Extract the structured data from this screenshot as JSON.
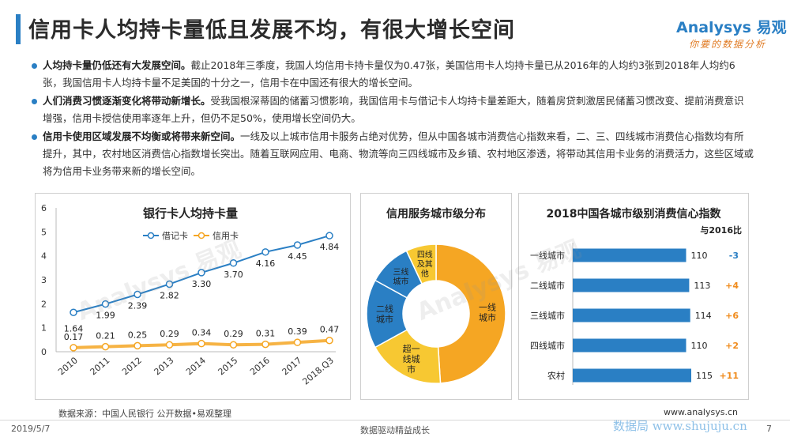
{
  "header": {
    "title": "信用卡人均持卡量低且发展不均，有很大增长空间",
    "logo_main": "Analysys 易观",
    "logo_sub": "你要的数据分析",
    "accent_color": "#2a7fc4"
  },
  "bullets": [
    {
      "bold": "人均持卡量仍低还有大发展空间。",
      "text": "截止2018年三季度，我国人均信用卡持卡量仅为0.47张，美国信用卡人均持卡量已从2016年的人均约3张到2018年人均约6张，我国信用卡人均持卡量不足美国的十分之一，信用卡在中国还有很大的增长空间。"
    },
    {
      "bold": "人们消费习惯逐渐变化将带动新增长。",
      "text": "受我国根深蒂固的储蓄习惯影响，我国信用卡与借记卡人均持卡量差距大，随着房贷刺激居民储蓄习惯改变、提前消费意识增强，信用卡授信使用率逐年上升，但仍不足50%，使用增长空间仍大。"
    },
    {
      "bold": "信用卡使用区域发展不均衡或将带来新空间。",
      "text": "一线及以上城市信用卡服务占绝对优势，但从中国各城市消费信心指数来看，二、三、四线城市消费信心指数均有所提升，其中，农村地区消费信心指数增长突出。随着互联网应用、电商、物流等向三四线城市及乡镇、农村地区渗透，将带动其信用卡业务的消费活力，这些区域或将为信用卡业务带来新的增长空间。"
    }
  ],
  "chart_data": [
    {
      "type": "line",
      "title": "银行卡人均持卡量",
      "categories": [
        "2010",
        "2011",
        "2012",
        "2013",
        "2014",
        "2015",
        "2016",
        "2017",
        "2018.Q3"
      ],
      "series": [
        {
          "name": "借记卡",
          "values": [
            1.64,
            1.99,
            2.39,
            2.82,
            3.3,
            3.7,
            4.16,
            4.45,
            4.84
          ],
          "color": "#2a7fc4"
        },
        {
          "name": "信用卡",
          "values": [
            0.17,
            0.21,
            0.25,
            0.29,
            0.34,
            0.29,
            0.31,
            0.39,
            0.47
          ],
          "color": "#f5a623"
        }
      ],
      "yticks": [
        "0",
        "1",
        "2",
        "3",
        "4",
        "5",
        "6"
      ],
      "ylim": [
        0,
        6
      ],
      "legend": "top"
    },
    {
      "type": "pie",
      "title": "信用服务城市级分布",
      "slices": [
        {
          "label": "一线城市",
          "value": 49,
          "color": "#f5a623"
        },
        {
          "label": "超一线城市",
          "value": 18,
          "color": "#f7c832"
        },
        {
          "label": "二线城市",
          "value": 16,
          "color": "#2a7fc4"
        },
        {
          "label": "三线城市",
          "value": 10,
          "color": "#2a7fc4"
        },
        {
          "label": "四线及其他",
          "value": 7,
          "color": "#f7c832"
        }
      ]
    },
    {
      "type": "bar",
      "title": "2018中国各城市级别消费信心指数",
      "subtitle": "与2016比",
      "categories": [
        "一线城市",
        "二线城市",
        "三线城市",
        "四线城市",
        "农村"
      ],
      "values": [
        110,
        113,
        114,
        110,
        115
      ],
      "changes": [
        "-3",
        "+4",
        "+6",
        "+2",
        "+11"
      ],
      "bar_color": "#2a7fc4",
      "change_colors": {
        "negative": "#2a7fc4",
        "positive": "#f08c1e"
      }
    }
  ],
  "footer": {
    "source": "数据来源：中国人民银行 公开数据•易观整理",
    "url": "www.analysys.cn",
    "date": "2019/5/7",
    "slogan": "数据驱动精益成长",
    "site": "数据局 www.shujuju.cn",
    "page": "7"
  }
}
